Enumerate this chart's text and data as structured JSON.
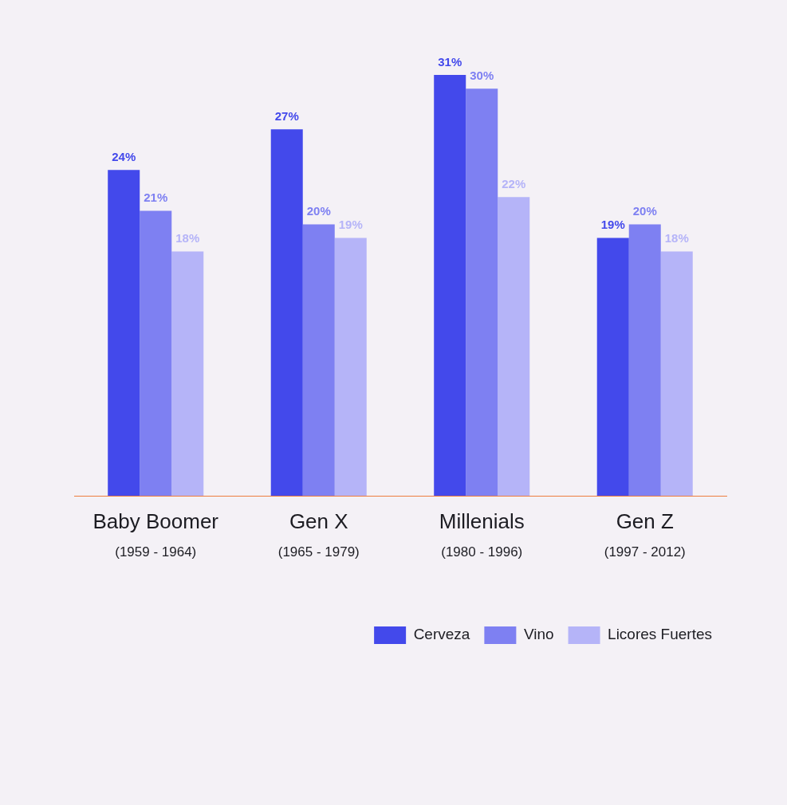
{
  "chart_data": {
    "type": "bar",
    "categories": [
      "Baby Boomer\n(1959 - 1964)",
      "Gen X\n(1965 - 1979)",
      "Millenials\n(1980 - 1996)",
      "Gen Z\n(1997 - 2012)"
    ],
    "series": [
      {
        "name": "Cerveza",
        "color": "#4349eb",
        "values": [
          24,
          27,
          31,
          19
        ],
        "value_labels": [
          "24%",
          "27%",
          "31%",
          "19%"
        ]
      },
      {
        "name": "Vino",
        "color": "#7e80f2",
        "values": [
          21,
          20,
          30,
          20
        ],
        "value_labels": [
          "21%",
          "20%",
          "30%",
          "20%"
        ]
      },
      {
        "name": "Licores Fuertes",
        "color": "#b5b4f8",
        "values": [
          18,
          19,
          22,
          18
        ],
        "value_labels": [
          "18%",
          "19%",
          "22%",
          "18%"
        ]
      }
    ],
    "legend": "bottom right",
    "tick_labels": "x",
    "grid": false
  }
}
